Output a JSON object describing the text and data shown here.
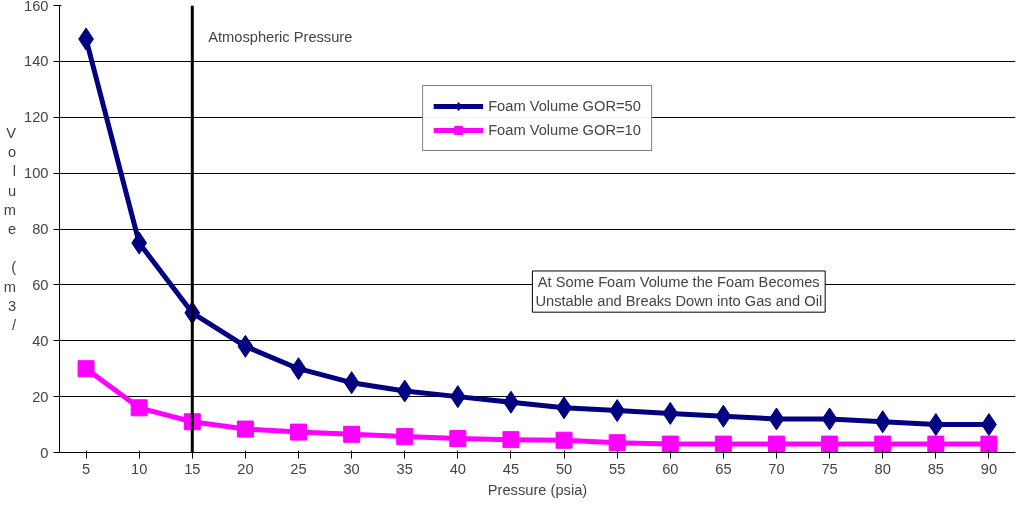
{
  "chart_data": {
    "type": "line",
    "xlabel": "Pressure (psia)",
    "ylabel": "Volume (m3/",
    "categories": [
      "5",
      "10",
      "15",
      "20",
      "25",
      "30",
      "35",
      "40",
      "45",
      "50",
      "55",
      "60",
      "65",
      "70",
      "75",
      "80",
      "85",
      "90"
    ],
    "series": [
      {
        "name": "Foam Volume GOR=50",
        "color": "#000080",
        "marker": "diamond",
        "values": [
          148,
          75,
          50,
          38,
          30,
          25,
          22,
          20,
          18,
          16,
          15,
          14,
          13,
          12,
          12,
          11,
          10,
          10
        ]
      },
      {
        "name": "Foam Volume GOR=10",
        "color": "#ff00ff",
        "marker": "square",
        "values": [
          30,
          16,
          11,
          8.4,
          7.3,
          6.5,
          5.7,
          5,
          4.6,
          4.4,
          3.5,
          3,
          3,
          3,
          3,
          3,
          3,
          3
        ]
      }
    ],
    "ylim": [
      0,
      160
    ],
    "yticks": [
      0,
      20,
      40,
      60,
      80,
      100,
      120,
      140,
      160
    ],
    "grid": "y",
    "legend": "top",
    "ref_lines": [
      {
        "axis": "x",
        "value": "15",
        "label": "Atmospheric Pressure",
        "color": "#000000"
      }
    ],
    "annotations": [
      "At Some Foam Volume the Foam Becomes\nUnstable and Breaks Down into Gas and Oil"
    ]
  }
}
